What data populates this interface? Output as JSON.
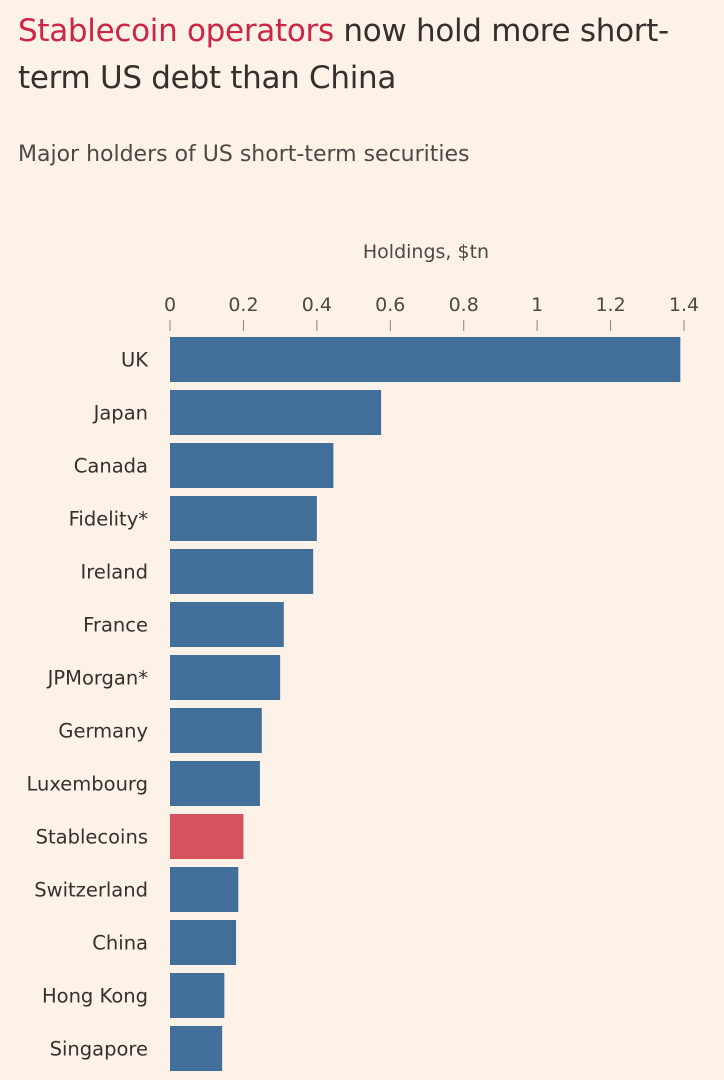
{
  "title": {
    "highlight": "Stablecoin operators",
    "rest": " now hold more short-term US debt than China"
  },
  "subtitle": "Major holders of US short-term securities",
  "colors": {
    "background": "#fdf2e8",
    "bar": "#416f99",
    "highlight_bar": "#d6525e",
    "title_highlight": "#cc2545"
  },
  "chart_data": {
    "type": "bar",
    "orientation": "horizontal",
    "title": "Stablecoin operators now hold more short-term US debt than China",
    "subtitle": "Major holders of US short-term securities",
    "xlabel": "Holdings, $tn",
    "ylabel": "",
    "xlim": [
      0,
      1.4
    ],
    "xticks": [
      0,
      0.2,
      0.4,
      0.6,
      0.8,
      1,
      1.2,
      1.4
    ],
    "xtick_labels": [
      "0",
      "0.2",
      "0.4",
      "0.6",
      "0.8",
      "1",
      "1.2",
      "1.4"
    ],
    "grid": false,
    "axis_position": "top",
    "categories": [
      "UK",
      "Japan",
      "Canada",
      "Fidelity*",
      "Ireland",
      "France",
      "JPMorgan*",
      "Germany",
      "Luxembourg",
      "Stablecoins",
      "Switzerland",
      "China",
      "Hong Kong",
      "Singapore"
    ],
    "values": [
      1.39,
      0.575,
      0.445,
      0.4,
      0.39,
      0.31,
      0.3,
      0.25,
      0.245,
      0.2,
      0.186,
      0.18,
      0.148,
      0.142
    ],
    "highlighted": [
      "Stablecoins"
    ]
  }
}
